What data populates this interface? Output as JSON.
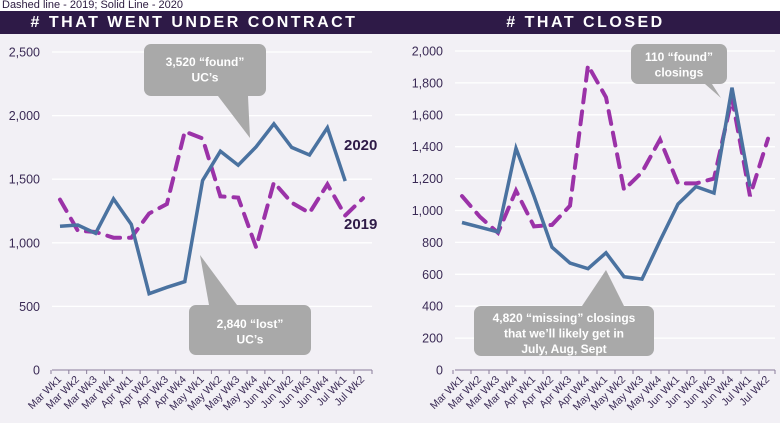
{
  "note": "Dashed line - 2019; Solid Line - 2020",
  "colors": {
    "banner": "#2e1a47",
    "line_2020": "#4a72a0",
    "line_2019": "#9b32a8",
    "callout": "#a9a9a9",
    "grid": "#ffffff",
    "axis_text": "#3a2a55"
  },
  "chart_data": [
    {
      "type": "line",
      "title": "# THAT WENT UNDER CONTRACT",
      "xlabel": "",
      "ylabel": "",
      "ylim": [
        0,
        2500
      ],
      "yticks": [
        0,
        500,
        1000,
        1500,
        2000,
        2500
      ],
      "ytick_labels": [
        "0",
        "500",
        "1,000",
        "1,500",
        "2,000",
        "2,500"
      ],
      "grid": true,
      "categories": [
        "Mar Wk1",
        "Mar Wk2",
        "Mar Wk3",
        "Mar Wk4",
        "Apr Wk1",
        "Apr Wk2",
        "Apr Wk3",
        "Apr Wk4",
        "May Wk1",
        "May Wk2",
        "May Wk3",
        "May Wk4",
        "Jun Wk1",
        "Jun Wk2",
        "Jun Wk3",
        "Jun Wk4",
        "Jul Wk1",
        "Jul Wk2"
      ],
      "series": [
        {
          "name": "2020",
          "style": "solid",
          "label": "2020",
          "values": [
            1130,
            1140,
            1075,
            1345,
            1145,
            600,
            650,
            695,
            1490,
            1720,
            1610,
            1755,
            1935,
            1750,
            1690,
            1905,
            1485,
            null
          ]
        },
        {
          "name": "2019",
          "style": "dashed",
          "label": "2019",
          "values": [
            1340,
            1095,
            1085,
            1040,
            1040,
            1230,
            1305,
            1875,
            1820,
            1365,
            1355,
            965,
            1475,
            1315,
            1235,
            1460,
            1215,
            1350
          ]
        }
      ],
      "annotations": [
        {
          "text_lines": [
            "3,520 “found”",
            "UC’s"
          ]
        },
        {
          "text_lines": [
            "2,840 “lost”",
            "UC’s"
          ]
        }
      ]
    },
    {
      "type": "line",
      "title": "# THAT CLOSED",
      "xlabel": "",
      "ylabel": "",
      "ylim": [
        0,
        2000
      ],
      "yticks": [
        0,
        200,
        400,
        600,
        800,
        1000,
        1200,
        1400,
        1600,
        1800,
        2000
      ],
      "ytick_labels": [
        "0",
        "200",
        "400",
        "600",
        "800",
        "1,000",
        "1,200",
        "1,400",
        "1,600",
        "1,800",
        "2,000"
      ],
      "grid": true,
      "categories": [
        "Mar Wk1",
        "Mar Wk2",
        "Mar Wk3",
        "Mar Wk4",
        "Apr Wk1",
        "Apr Wk2",
        "Apr Wk3",
        "Apr Wk4",
        "May Wk1",
        "May Wk2",
        "May Wk3",
        "May Wk4",
        "Jun Wk1",
        "Jun Wk2",
        "Jun Wk3",
        "Jun Wk4",
        "Jul Wk1",
        "Jul Wk2"
      ],
      "series": [
        {
          "name": "2020",
          "style": "solid",
          "values": [
            925,
            895,
            865,
            1390,
            1090,
            770,
            670,
            635,
            735,
            585,
            570,
            810,
            1040,
            1150,
            1110,
            1770,
            1150,
            null
          ]
        },
        {
          "name": "2019",
          "style": "dashed",
          "values": [
            1090,
            960,
            860,
            1125,
            900,
            910,
            1030,
            1910,
            1710,
            1130,
            1240,
            1445,
            1170,
            1170,
            1200,
            1705,
            1090,
            1450
          ]
        }
      ],
      "annotations": [
        {
          "text_lines": [
            "110 “found”",
            "closings"
          ]
        },
        {
          "text_lines": [
            "4,820 “missing” closings",
            "that we’ll likely get in",
            "July, Aug, Sept"
          ]
        }
      ]
    }
  ]
}
